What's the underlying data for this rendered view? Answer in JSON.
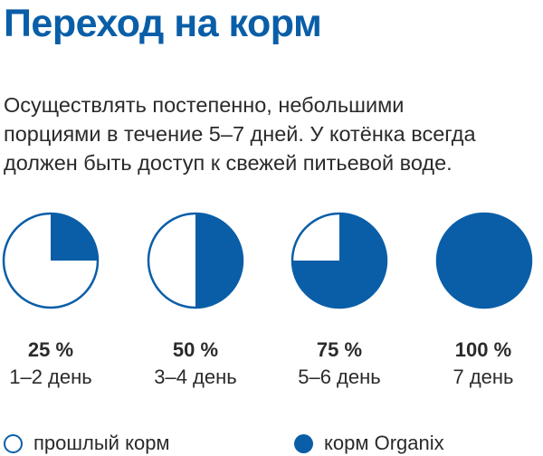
{
  "title": "Переход на корм",
  "description_lines": [
    "Осуществлять постепенно, небольшими",
    "порциями в течение 5–7 дней. У котёнка всегда",
    "должен быть доступ к свежей питьевой воде."
  ],
  "colors": {
    "accent": "#0a5ea8",
    "text": "#2a2a2a",
    "empty": "#ffffff"
  },
  "chart_data": {
    "type": "pie",
    "charts": [
      {
        "percent_label": "25 %",
        "days_label": "1–2 день",
        "new_food_share": 25,
        "old_food_share": 75
      },
      {
        "percent_label": "50 %",
        "days_label": "3–4 день",
        "new_food_share": 50,
        "old_food_share": 50
      },
      {
        "percent_label": "75 %",
        "days_label": "5–6 день",
        "new_food_share": 75,
        "old_food_share": 25
      },
      {
        "percent_label": "100 %",
        "days_label": "7 день",
        "new_food_share": 100,
        "old_food_share": 0
      }
    ],
    "legend": [
      {
        "label": "прошлый корм",
        "style": "outline"
      },
      {
        "label": "корм Organix",
        "style": "filled"
      }
    ]
  }
}
